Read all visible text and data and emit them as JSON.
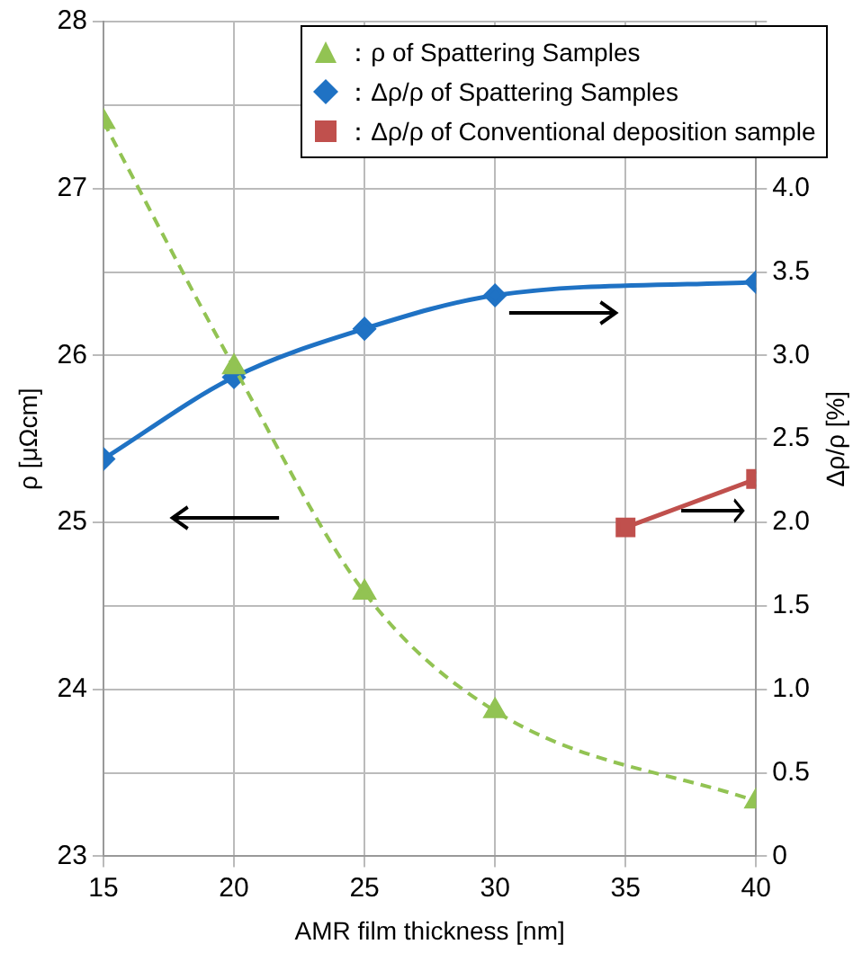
{
  "chart_data": {
    "type": "line",
    "xlabel": "AMR film thickness [nm]",
    "ylabel": "ρ [μΩcm]",
    "y2label": "Δρ/ρ [%]",
    "xlim": [
      15,
      40
    ],
    "xticks": [
      15,
      20,
      25,
      30,
      35,
      40
    ],
    "ylim": [
      23,
      28
    ],
    "yticks": [
      23,
      24,
      25,
      26,
      27,
      28
    ],
    "y2lim": [
      0,
      5
    ],
    "y2ticks": [
      0,
      {
        "value": 0.5,
        "label": "0.5"
      },
      {
        "value": 1,
        "label": "1.0"
      },
      {
        "value": 1.5,
        "label": "1.5"
      },
      {
        "value": 2,
        "label": "2.0"
      },
      {
        "value": 2.5,
        "label": "2.5"
      },
      {
        "value": 3,
        "label": "3.0"
      },
      {
        "value": 3.5,
        "label": "3.5"
      },
      {
        "value": 4,
        "label": "4.0"
      },
      {
        "value": 4.5,
        "label": null
      },
      {
        "value": 5,
        "label": null
      }
    ],
    "grid": true,
    "legend": "top right",
    "series": [
      {
        "name": "：ρ of Spattering Samples",
        "color": "#92c353",
        "x": [
          15,
          20,
          25,
          30,
          40
        ],
        "values": [
          27.4,
          25.93,
          24.58,
          23.87,
          23.33
        ],
        "marker": "triangle",
        "line_style": "dashed"
      },
      {
        "name": "：Δρ/ρ of Spattering Samples",
        "color": "#1f72c4",
        "x": [
          15,
          20,
          25,
          30,
          40
        ],
        "values": [
          2.38,
          2.87,
          3.16,
          3.36,
          3.44
        ],
        "marker": "diamond",
        "line_style": "solid",
        "axis": "y2"
      },
      {
        "name": "：Δρ/ρ of Conventional deposition sample",
        "color": "#c0504d",
        "x": [
          35,
          40
        ],
        "values": [
          1.97,
          2.26
        ],
        "marker": "square",
        "line_style": "solid",
        "axis": "y2"
      }
    ]
  }
}
